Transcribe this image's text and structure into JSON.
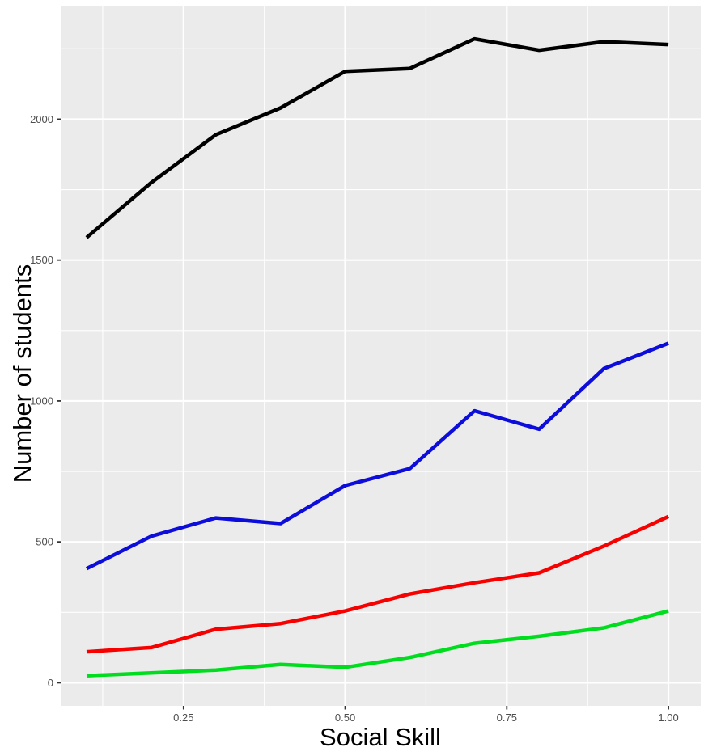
{
  "chart_data": {
    "type": "line",
    "title": "",
    "xlabel": "Social Skill",
    "ylabel": "Number of students",
    "x": [
      0.1,
      0.2,
      0.3,
      0.4,
      0.5,
      0.6,
      0.7,
      0.8,
      0.9,
      1.0
    ],
    "series": [
      {
        "name": "black",
        "color": "#000000",
        "values": [
          1580,
          1775,
          1945,
          2040,
          2170,
          2180,
          2285,
          2245,
          2275,
          2265
        ]
      },
      {
        "name": "blue",
        "color": "#0d0ddb",
        "values": [
          405,
          520,
          585,
          565,
          700,
          760,
          965,
          900,
          1115,
          1205
        ]
      },
      {
        "name": "red",
        "color": "#f60000",
        "values": [
          110,
          125,
          190,
          210,
          255,
          315,
          355,
          390,
          485,
          590
        ]
      },
      {
        "name": "green",
        "color": "#00dd1e",
        "values": [
          25,
          35,
          45,
          65,
          55,
          90,
          140,
          165,
          195,
          255
        ]
      }
    ],
    "x_ticks": {
      "values": [
        0.25,
        0.5,
        0.75,
        1.0
      ],
      "labels": [
        "0.25",
        "0.50",
        "0.75",
        "1.00"
      ]
    },
    "y_ticks": {
      "values": [
        0,
        500,
        1000,
        1500,
        2000
      ],
      "labels": [
        "0",
        "500",
        "1000",
        "1500",
        "2000"
      ]
    },
    "x_minor_ticks": [
      0.125,
      0.375,
      0.625,
      0.875
    ],
    "y_minor_ticks": [
      250,
      750,
      1250,
      1750,
      2250
    ],
    "xlim": [
      0.06,
      1.05
    ],
    "ylim": [
      -82,
      2403
    ],
    "grid": "major+minor",
    "legend": "none",
    "panel_background": "#EBEBEB",
    "grid_color": "#FFFFFF",
    "tick_label_color": "#4D4D4D",
    "tick_mark_color": "#333333",
    "axis_title_color": "#000000"
  }
}
